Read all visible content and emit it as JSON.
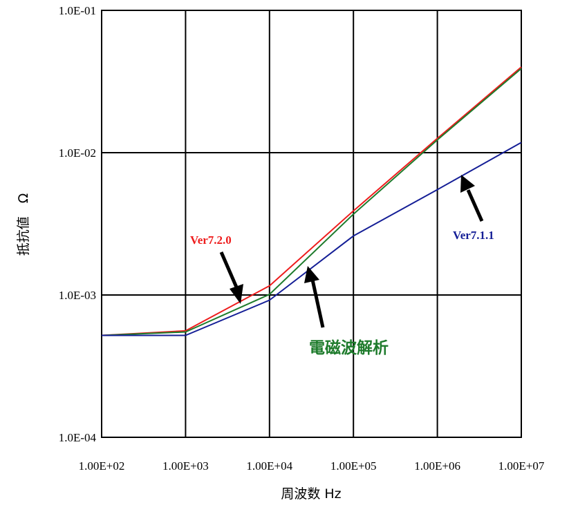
{
  "chart_data": {
    "type": "line",
    "xlabel": "周波数 Hz",
    "ylabel": "抵抗値　Ω",
    "xscale": "log",
    "yscale": "log",
    "xlim": [
      100,
      10000000
    ],
    "ylim": [
      0.0001,
      0.1
    ],
    "grid": true,
    "x_tick_labels": [
      "1.00E+02",
      "1.00E+03",
      "1.00E+04",
      "1.00E+05",
      "1.00E+06",
      "1.00E+07"
    ],
    "y_tick_labels": [
      "1.0E-04",
      "1.0E-03",
      "1.0E-02",
      "1.0E-01"
    ],
    "x": [
      100,
      1000,
      10000,
      100000,
      1000000,
      10000000
    ],
    "series": [
      {
        "name": "Ver7.2.0",
        "color": "#ee1c1c",
        "values": [
          0.00052,
          0.00056,
          0.00116,
          0.0039,
          0.0126,
          0.04
        ]
      },
      {
        "name": "電磁波解析",
        "color": "#1e7b2c",
        "values": [
          0.00052,
          0.00055,
          0.00101,
          0.0037,
          0.0123,
          0.039
        ]
      },
      {
        "name": "Ver7.1.1",
        "color": "#141e96",
        "values": [
          0.00052,
          0.00052,
          0.00092,
          0.0026,
          0.0055,
          0.0118
        ]
      }
    ],
    "annotations": [
      {
        "text": "Ver7.2.0",
        "color": "#ee1c1c",
        "points_to_series": "Ver7.2.0"
      },
      {
        "text": "電磁波解析",
        "color": "#1e7b2c",
        "points_to_series": "電磁波解析"
      },
      {
        "text": "Ver7.1.1",
        "color": "#141e96",
        "points_to_series": "Ver7.1.1"
      }
    ]
  }
}
